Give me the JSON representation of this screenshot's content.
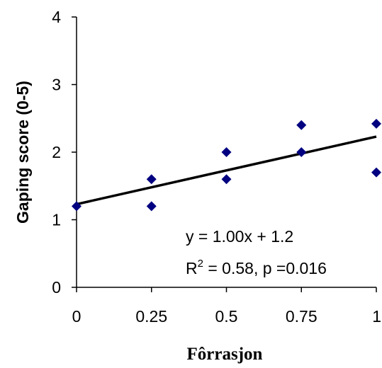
{
  "chart_data": {
    "type": "scatter",
    "title": "",
    "xlabel": "Fôrrasjon",
    "ylabel": "Gaping score (0-5)",
    "xlim": [
      0,
      1
    ],
    "ylim": [
      0,
      4
    ],
    "xticks": [
      0,
      0.25,
      0.5,
      0.75,
      1
    ],
    "xtick_labels": [
      "0",
      "0.25",
      "0.5",
      "0.75",
      "1"
    ],
    "yticks": [
      0,
      1,
      2,
      3,
      4
    ],
    "ytick_labels": [
      "0",
      "1",
      "2",
      "3",
      "4"
    ],
    "grid": false,
    "legend": "none",
    "series": [
      {
        "points": [
          {
            "x": 0,
            "y": 1.2
          },
          {
            "x": 0.25,
            "y": 1.6
          },
          {
            "x": 0.25,
            "y": 1.2
          },
          {
            "x": 0.5,
            "y": 2.0
          },
          {
            "x": 0.5,
            "y": 1.6
          },
          {
            "x": 0.75,
            "y": 2.4
          },
          {
            "x": 0.75,
            "y": 2.0
          },
          {
            "x": 1,
            "y": 2.42
          },
          {
            "x": 1,
            "y": 1.7
          }
        ],
        "marker": "diamond",
        "color": "#000080"
      }
    ],
    "trendline": {
      "slope": 1.0,
      "intercept": 1.23,
      "x_range": [
        0,
        1
      ],
      "color": "#000000"
    },
    "annotations": {
      "equation": "y = 1.00x + 1.2",
      "r_prefix": "R",
      "r_sup": "2",
      "r_suffix": " = 0.58, p =0.016"
    }
  }
}
